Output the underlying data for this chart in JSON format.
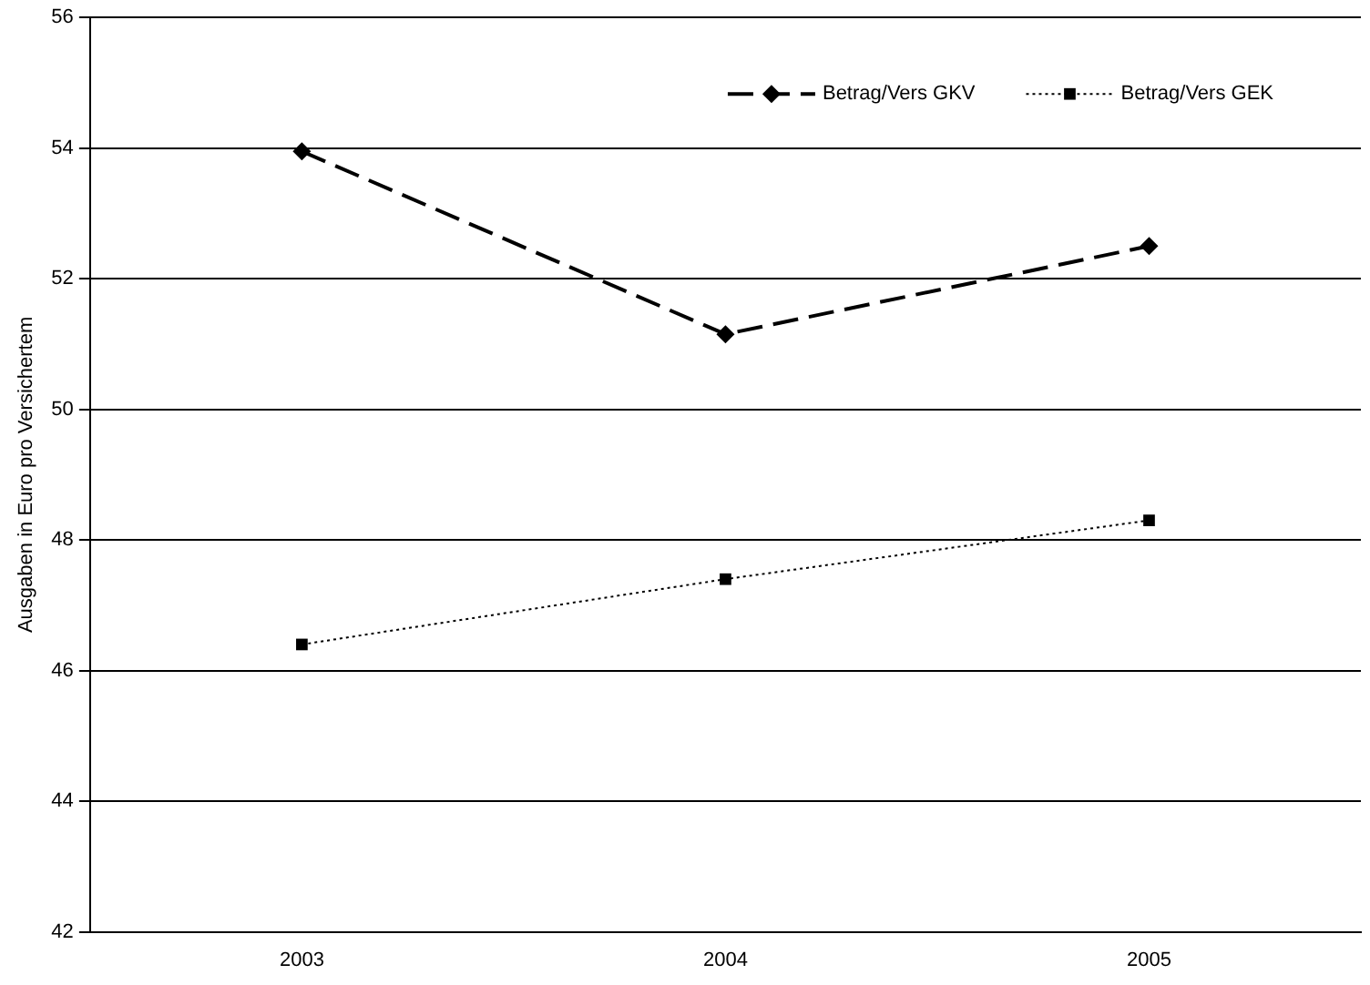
{
  "chart_data": {
    "type": "line",
    "ylabel": "Ausgaben in Euro pro Versichertem",
    "categories": [
      "2003",
      "2004",
      "2005"
    ],
    "series": [
      {
        "name": "Betrag/Vers GKV",
        "color": "#000000",
        "values": [
          53.95,
          51.15,
          52.5
        ],
        "marker": "diamond",
        "line_style": "dashed"
      },
      {
        "name": "Betrag/Vers GEK",
        "color": "#000000",
        "values": [
          46.4,
          47.4,
          48.3
        ],
        "marker": "square",
        "line_style": "dotted"
      }
    ],
    "ylim": [
      42,
      56
    ],
    "yticks": [
      42,
      44,
      46,
      48,
      50,
      52,
      54,
      56
    ],
    "grid": "y",
    "legend": "top right"
  }
}
